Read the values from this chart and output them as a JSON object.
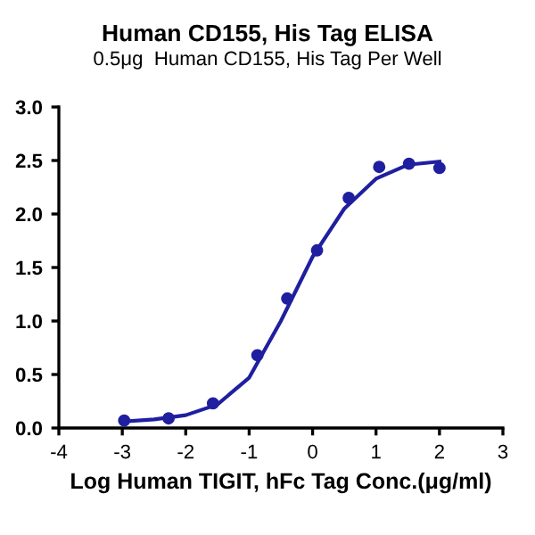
{
  "chart_data": {
    "type": "scatter",
    "title": "Human CD155, His Tag ELISA",
    "subtitle": "0.5μg  Human CD155, His Tag Per Well",
    "xlabel": "Log Human TIGIT, hFc Tag Conc.(μg/ml)",
    "series": [
      {
        "color": "#1f1fa0",
        "marker": "circle",
        "x": [
          -2.97,
          -2.27,
          -1.57,
          -0.87,
          -0.4,
          0.07,
          0.57,
          1.05,
          1.52,
          2.0
        ],
        "values": [
          0.07,
          0.09,
          0.23,
          0.68,
          1.21,
          1.66,
          2.15,
          2.44,
          2.47,
          2.43
        ]
      },
      {
        "type": "line",
        "color": "#1f1fa0",
        "x": [
          -3,
          -2.5,
          -2,
          -1.5,
          -1,
          -0.5,
          0,
          0.5,
          1,
          1.5,
          2
        ],
        "values": [
          0.06,
          0.08,
          0.12,
          0.22,
          0.47,
          1.0,
          1.6,
          2.05,
          2.33,
          2.46,
          2.49
        ]
      }
    ],
    "xlim": [
      -4,
      3
    ],
    "xticks": [
      -4,
      -3,
      -2,
      -1,
      0,
      1,
      2,
      3
    ],
    "ylim": [
      0,
      3
    ],
    "yticks": [
      {
        "value": 0,
        "label": "0.0"
      },
      {
        "value": 0.5,
        "label": "0.5"
      },
      {
        "value": 1,
        "label": "1.0"
      },
      {
        "value": 1.5,
        "label": "1.5"
      },
      {
        "value": 2,
        "label": "2.0"
      },
      {
        "value": 2.5,
        "label": "2.5"
      },
      {
        "value": 3,
        "label": "3.0"
      }
    ],
    "grid": false
  }
}
